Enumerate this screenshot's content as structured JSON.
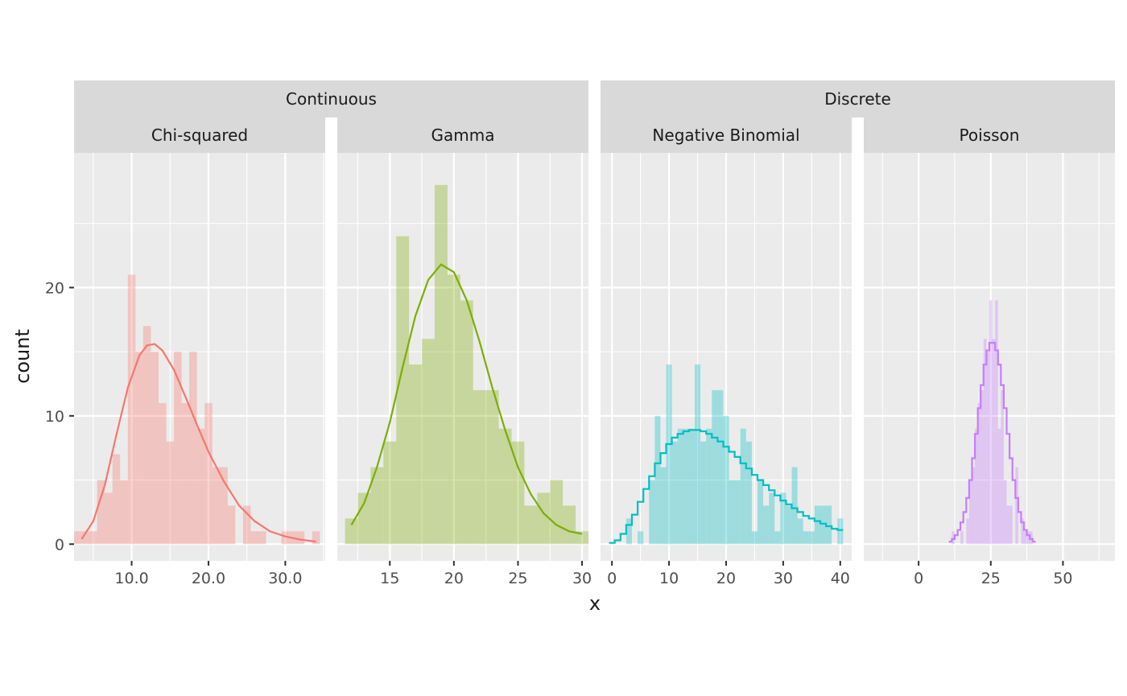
{
  "chart_data": {
    "type": "bar",
    "xlabel": "x",
    "ylabel": "count",
    "y_ticks": [
      "0",
      "10",
      "20"
    ],
    "ylim": [
      -1.3,
      30.5
    ],
    "grid": true,
    "facet_groups": [
      "Continuous",
      "Discrete"
    ],
    "panels": [
      {
        "group": "Continuous",
        "title": "Chi-squared",
        "color": "#F8766D",
        "xlim": [
          2.5,
          35.2
        ],
        "x_ticks": [
          10,
          20,
          30
        ],
        "x_tick_labels": [
          "10.0",
          "20.0",
          "30.0"
        ],
        "binwidth": 1.0,
        "bins": [
          {
            "x": 3,
            "y": 1
          },
          {
            "x": 4,
            "y": 1
          },
          {
            "x": 5,
            "y": 1
          },
          {
            "x": 6,
            "y": 5
          },
          {
            "x": 7,
            "y": 4
          },
          {
            "x": 8,
            "y": 7
          },
          {
            "x": 9,
            "y": 5
          },
          {
            "x": 10,
            "y": 21
          },
          {
            "x": 11,
            "y": 15
          },
          {
            "x": 12,
            "y": 17
          },
          {
            "x": 13,
            "y": 15
          },
          {
            "x": 14,
            "y": 11
          },
          {
            "x": 15,
            "y": 8
          },
          {
            "x": 16,
            "y": 15
          },
          {
            "x": 17,
            "y": 11
          },
          {
            "x": 18,
            "y": 15
          },
          {
            "x": 19,
            "y": 9
          },
          {
            "x": 20,
            "y": 11
          },
          {
            "x": 21,
            "y": 6
          },
          {
            "x": 22,
            "y": 6
          },
          {
            "x": 23,
            "y": 3
          },
          {
            "x": 25,
            "y": 3
          },
          {
            "x": 26,
            "y": 1
          },
          {
            "x": 27,
            "y": 1
          },
          {
            "x": 30,
            "y": 1
          },
          {
            "x": 31,
            "y": 1
          },
          {
            "x": 32,
            "y": 1
          },
          {
            "x": 34,
            "y": 1
          }
        ],
        "curve": [
          {
            "x": 3.5,
            "y": 0.4
          },
          {
            "x": 5,
            "y": 1.8
          },
          {
            "x": 6.5,
            "y": 4.6
          },
          {
            "x": 8,
            "y": 8.5
          },
          {
            "x": 9.5,
            "y": 12.2
          },
          {
            "x": 11,
            "y": 14.7
          },
          {
            "x": 12,
            "y": 15.5
          },
          {
            "x": 13,
            "y": 15.6
          },
          {
            "x": 14,
            "y": 15.1
          },
          {
            "x": 15.5,
            "y": 13.6
          },
          {
            "x": 17,
            "y": 11.5
          },
          {
            "x": 18.5,
            "y": 9.3
          },
          {
            "x": 20,
            "y": 7.2
          },
          {
            "x": 22,
            "y": 4.9
          },
          {
            "x": 24,
            "y": 3.0
          },
          {
            "x": 26,
            "y": 1.8
          },
          {
            "x": 28,
            "y": 1.0
          },
          {
            "x": 30,
            "y": 0.6
          },
          {
            "x": 32,
            "y": 0.35
          },
          {
            "x": 34,
            "y": 0.2
          }
        ]
      },
      {
        "group": "Continuous",
        "title": "Gamma",
        "color": "#7CAE00",
        "xlim": [
          10.9,
          30.5
        ],
        "x_ticks": [
          15,
          20,
          25,
          30
        ],
        "x_tick_labels": [
          "15",
          "20",
          "25",
          "30"
        ],
        "binwidth": 1.0,
        "bins": [
          {
            "x": 12,
            "y": 2
          },
          {
            "x": 13,
            "y": 4
          },
          {
            "x": 14,
            "y": 6
          },
          {
            "x": 15,
            "y": 8
          },
          {
            "x": 16,
            "y": 24
          },
          {
            "x": 17,
            "y": 14
          },
          {
            "x": 18,
            "y": 16
          },
          {
            "x": 19,
            "y": 28
          },
          {
            "x": 20,
            "y": 21
          },
          {
            "x": 21,
            "y": 19
          },
          {
            "x": 22,
            "y": 12
          },
          {
            "x": 23,
            "y": 12
          },
          {
            "x": 24,
            "y": 9
          },
          {
            "x": 25,
            "y": 8
          },
          {
            "x": 26,
            "y": 3
          },
          {
            "x": 27,
            "y": 4
          },
          {
            "x": 28,
            "y": 5
          },
          {
            "x": 29,
            "y": 3
          },
          {
            "x": 30,
            "y": 1
          }
        ],
        "curve": [
          {
            "x": 12,
            "y": 1.5
          },
          {
            "x": 13,
            "y": 3.2
          },
          {
            "x": 14,
            "y": 6.0
          },
          {
            "x": 15,
            "y": 9.5
          },
          {
            "x": 16,
            "y": 13.8
          },
          {
            "x": 17,
            "y": 17.8
          },
          {
            "x": 18,
            "y": 20.6
          },
          {
            "x": 19,
            "y": 21.8
          },
          {
            "x": 20,
            "y": 21.2
          },
          {
            "x": 21,
            "y": 19.0
          },
          {
            "x": 22,
            "y": 15.8
          },
          {
            "x": 23,
            "y": 12.2
          },
          {
            "x": 24,
            "y": 8.9
          },
          {
            "x": 25,
            "y": 6.0
          },
          {
            "x": 26,
            "y": 3.9
          },
          {
            "x": 27,
            "y": 2.4
          },
          {
            "x": 28,
            "y": 1.5
          },
          {
            "x": 29,
            "y": 1.0
          },
          {
            "x": 30,
            "y": 0.8
          }
        ]
      },
      {
        "group": "Discrete",
        "title": "Negative Binomial",
        "color": "#00BFC4",
        "xlim": [
          -2,
          42
        ],
        "x_ticks": [
          0,
          10,
          20,
          30,
          40
        ],
        "x_tick_labels": [
          "0",
          "10",
          "20",
          "30",
          "40"
        ],
        "binwidth": 1.0,
        "bins": [
          {
            "x": 3,
            "y": 2
          },
          {
            "x": 5,
            "y": 1
          },
          {
            "x": 7,
            "y": 5
          },
          {
            "x": 8,
            "y": 10
          },
          {
            "x": 9,
            "y": 6
          },
          {
            "x": 10,
            "y": 14
          },
          {
            "x": 11,
            "y": 8
          },
          {
            "x": 12,
            "y": 9
          },
          {
            "x": 13,
            "y": 9
          },
          {
            "x": 14,
            "y": 9
          },
          {
            "x": 15,
            "y": 14
          },
          {
            "x": 16,
            "y": 8
          },
          {
            "x": 17,
            "y": 9
          },
          {
            "x": 18,
            "y": 12
          },
          {
            "x": 19,
            "y": 12
          },
          {
            "x": 20,
            "y": 10
          },
          {
            "x": 21,
            "y": 5
          },
          {
            "x": 22,
            "y": 5
          },
          {
            "x": 23,
            "y": 9
          },
          {
            "x": 24,
            "y": 8
          },
          {
            "x": 25,
            "y": 1
          },
          {
            "x": 26,
            "y": 5
          },
          {
            "x": 27,
            "y": 3
          },
          {
            "x": 28,
            "y": 4
          },
          {
            "x": 29,
            "y": 1
          },
          {
            "x": 30,
            "y": 4
          },
          {
            "x": 31,
            "y": 3
          },
          {
            "x": 32,
            "y": 6
          },
          {
            "x": 33,
            "y": 2
          },
          {
            "x": 34,
            "y": 1
          },
          {
            "x": 35,
            "y": 1
          },
          {
            "x": 36,
            "y": 3
          },
          {
            "x": 37,
            "y": 3
          },
          {
            "x": 38,
            "y": 3
          },
          {
            "x": 40,
            "y": 2
          }
        ],
        "curve": [
          {
            "x": 0,
            "y": 0.1
          },
          {
            "x": 1,
            "y": 0.3
          },
          {
            "x": 2,
            "y": 0.8
          },
          {
            "x": 3,
            "y": 1.5
          },
          {
            "x": 4,
            "y": 2.3
          },
          {
            "x": 5,
            "y": 3.3
          },
          {
            "x": 6,
            "y": 4.3
          },
          {
            "x": 7,
            "y": 5.3
          },
          {
            "x": 8,
            "y": 6.3
          },
          {
            "x": 9,
            "y": 7.1
          },
          {
            "x": 10,
            "y": 7.8
          },
          {
            "x": 11,
            "y": 8.3
          },
          {
            "x": 12,
            "y": 8.6
          },
          {
            "x": 13,
            "y": 8.8
          },
          {
            "x": 14,
            "y": 8.9
          },
          {
            "x": 15,
            "y": 8.9
          },
          {
            "x": 16,
            "y": 8.8
          },
          {
            "x": 17,
            "y": 8.6
          },
          {
            "x": 18,
            "y": 8.3
          },
          {
            "x": 19,
            "y": 8.0
          },
          {
            "x": 20,
            "y": 7.6
          },
          {
            "x": 21,
            "y": 7.2
          },
          {
            "x": 22,
            "y": 6.8
          },
          {
            "x": 23,
            "y": 6.3
          },
          {
            "x": 24,
            "y": 5.9
          },
          {
            "x": 25,
            "y": 5.4
          },
          {
            "x": 26,
            "y": 5.0
          },
          {
            "x": 27,
            "y": 4.6
          },
          {
            "x": 28,
            "y": 4.2
          },
          {
            "x": 29,
            "y": 3.8
          },
          {
            "x": 30,
            "y": 3.4
          },
          {
            "x": 31,
            "y": 3.1
          },
          {
            "x": 32,
            "y": 2.8
          },
          {
            "x": 33,
            "y": 2.5
          },
          {
            "x": 34,
            "y": 2.2
          },
          {
            "x": 35,
            "y": 2.0
          },
          {
            "x": 36,
            "y": 1.8
          },
          {
            "x": 37,
            "y": 1.6
          },
          {
            "x": 38,
            "y": 1.4
          },
          {
            "x": 39,
            "y": 1.2
          },
          {
            "x": 40,
            "y": 1.1
          }
        ]
      },
      {
        "group": "Discrete",
        "title": "Poisson",
        "color": "#C77CFF",
        "xlim": [
          -19,
          68
        ],
        "x_ticks": [
          0,
          25,
          50
        ],
        "x_tick_labels": [
          "0",
          "25",
          "50"
        ],
        "binwidth": 1.0,
        "bins": [
          {
            "x": 12,
            "y": 1
          },
          {
            "x": 15,
            "y": 1
          },
          {
            "x": 17,
            "y": 2
          },
          {
            "x": 18,
            "y": 5
          },
          {
            "x": 19,
            "y": 6
          },
          {
            "x": 20,
            "y": 9
          },
          {
            "x": 21,
            "y": 11
          },
          {
            "x": 22,
            "y": 12
          },
          {
            "x": 23,
            "y": 16
          },
          {
            "x": 24,
            "y": 15
          },
          {
            "x": 25,
            "y": 19
          },
          {
            "x": 26,
            "y": 16
          },
          {
            "x": 27,
            "y": 19
          },
          {
            "x": 28,
            "y": 9
          },
          {
            "x": 29,
            "y": 12
          },
          {
            "x": 30,
            "y": 5
          },
          {
            "x": 31,
            "y": 3
          },
          {
            "x": 32,
            "y": 3
          },
          {
            "x": 34,
            "y": 6
          },
          {
            "x": 36,
            "y": 2
          },
          {
            "x": 37,
            "y": 1
          },
          {
            "x": 38,
            "y": 1
          },
          {
            "x": 39,
            "y": 1
          }
        ],
        "curve": [
          {
            "x": 11,
            "y": 0.2
          },
          {
            "x": 12,
            "y": 0.4
          },
          {
            "x": 13,
            "y": 0.7
          },
          {
            "x": 14,
            "y": 1.1
          },
          {
            "x": 15,
            "y": 1.7
          },
          {
            "x": 16,
            "y": 2.5
          },
          {
            "x": 17,
            "y": 3.6
          },
          {
            "x": 18,
            "y": 5.0
          },
          {
            "x": 19,
            "y": 6.7
          },
          {
            "x": 20,
            "y": 8.6
          },
          {
            "x": 21,
            "y": 10.6
          },
          {
            "x": 22,
            "y": 12.4
          },
          {
            "x": 23,
            "y": 14.0
          },
          {
            "x": 24,
            "y": 15.1
          },
          {
            "x": 25,
            "y": 15.7
          },
          {
            "x": 26,
            "y": 15.7
          },
          {
            "x": 27,
            "y": 15.1
          },
          {
            "x": 28,
            "y": 14.0
          },
          {
            "x": 29,
            "y": 12.4
          },
          {
            "x": 30,
            "y": 10.6
          },
          {
            "x": 31,
            "y": 8.6
          },
          {
            "x": 32,
            "y": 6.7
          },
          {
            "x": 33,
            "y": 5.0
          },
          {
            "x": 34,
            "y": 3.6
          },
          {
            "x": 35,
            "y": 2.5
          },
          {
            "x": 36,
            "y": 1.7
          },
          {
            "x": 37,
            "y": 1.1
          },
          {
            "x": 38,
            "y": 0.7
          },
          {
            "x": 39,
            "y": 0.4
          },
          {
            "x": 40,
            "y": 0.2
          }
        ]
      }
    ]
  }
}
